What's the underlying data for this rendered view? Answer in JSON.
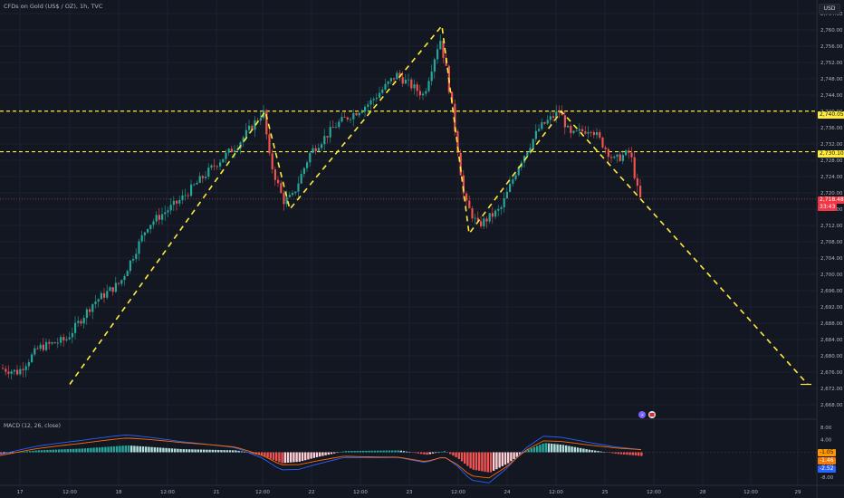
{
  "header": {
    "symbol_title": "CFDs on Gold (US$ / OZ), 1h, TVC",
    "currency_button": "USD"
  },
  "price_axis": {
    "ticks": [
      "2,764.00",
      "2,760.00",
      "2,756.00",
      "2,752.00",
      "2,748.00",
      "2,744.00",
      "2,740.00",
      "2,736.00",
      "2,732.00",
      "2,728.00",
      "2,724.00",
      "2,720.00",
      "2,716.00",
      "2,712.00",
      "2,708.00",
      "2,704.00",
      "2,700.00",
      "2,696.00",
      "2,692.00",
      "2,688.00",
      "2,684.00",
      "2,680.00",
      "2,676.00",
      "2,672.00",
      "2,668.00"
    ],
    "range": [
      2666,
      2766
    ]
  },
  "price_badges": {
    "level_upper": "2,740.05",
    "level_lower": "2,730.10",
    "current_price": "2,718.48",
    "countdown": "33:43"
  },
  "time_axis": {
    "labels": [
      "17",
      "12:00",
      "18",
      "12:00",
      "21",
      "12:00",
      "22",
      "12:00",
      "23",
      "12:00",
      "24",
      "12:00",
      "25",
      "12:00",
      "28",
      "12:00",
      "29"
    ]
  },
  "macd": {
    "label": "MACD (12, 26, close)",
    "ticks": [
      "8.00",
      "4.00",
      "-4.00",
      "-8.00"
    ],
    "badges": {
      "histogram": "-1.05",
      "signal": "-1.46",
      "macd": "-2.52"
    }
  },
  "colors": {
    "background": "#131722",
    "up": "#26a69a",
    "down": "#ef5350",
    "drawing": "#ffeb3b",
    "macd_line": "#2962ff",
    "signal_line": "#ff6d00"
  },
  "chart_data": {
    "type": "candlestick",
    "timeframe": "1h",
    "y_range": [
      2666,
      2766
    ],
    "horizontal_levels": [
      2740.05,
      2730.1
    ],
    "current_price": 2718.48,
    "price_path_approx": [
      {
        "t": "17 open",
        "price": 2677
      },
      {
        "t": "18 12:00",
        "price": 2700
      },
      {
        "t": "21 12:00",
        "price": 2740
      },
      {
        "t": "22 00:00",
        "price": 2717
      },
      {
        "t": "23 12:00",
        "price": 2758
      },
      {
        "t": "24 00:00",
        "price": 2711
      },
      {
        "t": "24 12:00",
        "price": 2740
      },
      {
        "t": "25 latest",
        "price": 2718.48
      }
    ],
    "projection_path": [
      {
        "t": "17 12:00",
        "price": 2673
      },
      {
        "t": "21 12:00",
        "price": 2740
      },
      {
        "t": "22 00:00",
        "price": 2716
      },
      {
        "t": "23 12:00",
        "price": 2761
      },
      {
        "t": "24 00:00",
        "price": 2710
      },
      {
        "t": "24 12:00",
        "price": 2740
      },
      {
        "t": "29",
        "price": 2673
      }
    ]
  }
}
